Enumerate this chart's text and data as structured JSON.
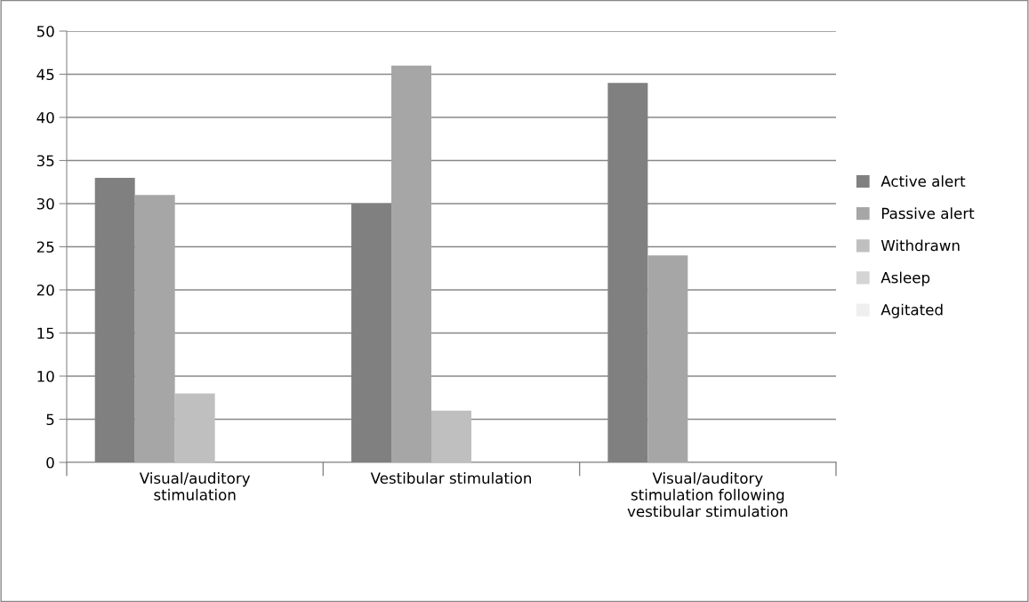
{
  "chart_data": {
    "type": "bar",
    "categories": [
      "Visual/auditory\nstimulation",
      "Vestibular stimulation",
      "Visual/auditory\nstimulation following\nvestibular stimulation"
    ],
    "series": [
      {
        "name": "Active alert",
        "color": "#808080",
        "values": [
          33,
          30,
          44
        ]
      },
      {
        "name": "Passive alert",
        "color": "#a6a6a6",
        "values": [
          31,
          46,
          24
        ]
      },
      {
        "name": "Withdrawn",
        "color": "#bfbfbf",
        "values": [
          8,
          6,
          0
        ]
      },
      {
        "name": "Asleep",
        "color": "#d4d4d4",
        "values": [
          0,
          0,
          0
        ]
      },
      {
        "name": "Agitated",
        "color": "#efefef",
        "values": [
          0,
          0,
          0
        ]
      }
    ],
    "ylim": [
      0,
      50
    ],
    "yticks": [
      0,
      5,
      10,
      15,
      20,
      25,
      30,
      35,
      40,
      45,
      50
    ],
    "grid": "y",
    "legend": "right"
  }
}
